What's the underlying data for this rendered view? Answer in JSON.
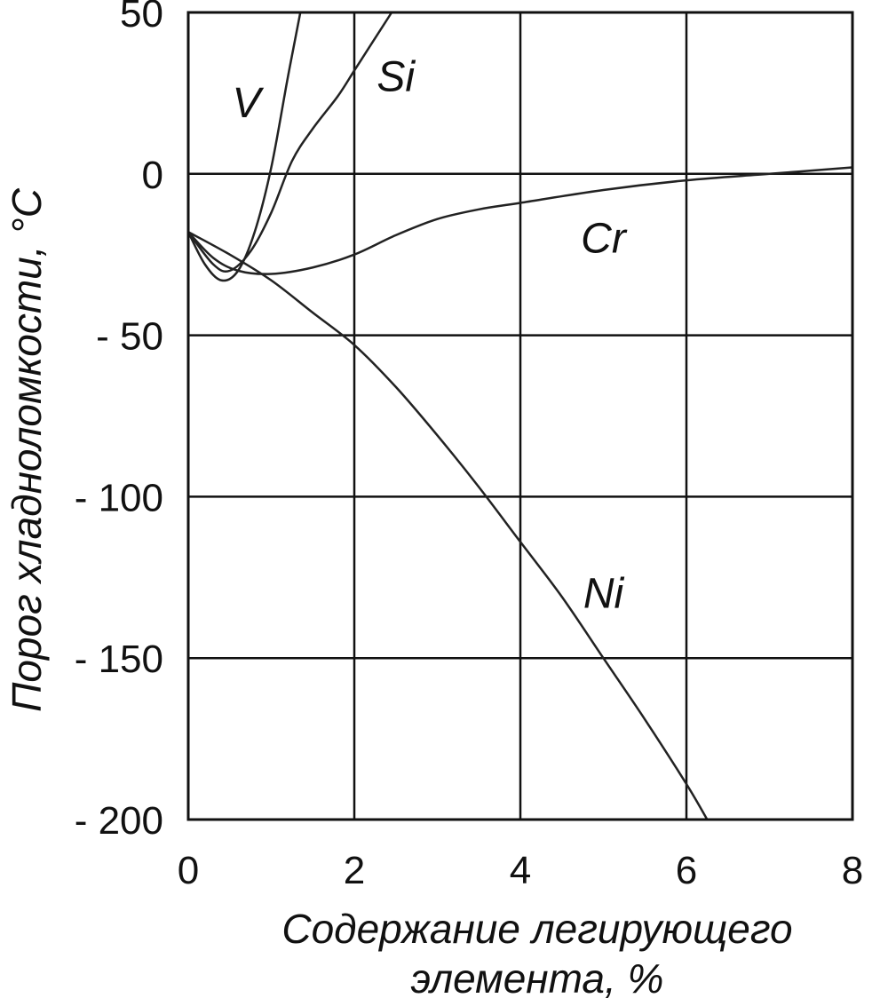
{
  "chart_data": {
    "type": "line",
    "title": "",
    "xlabel_line1": "Содержание легирующего",
    "xlabel_line2": "элемента, %",
    "ylabel": "Порог хладноломкости, °C",
    "xlim": [
      0,
      8
    ],
    "ylim": [
      -200,
      50
    ],
    "x_ticks": [
      0,
      2,
      4,
      6,
      8
    ],
    "x_tick_labels": [
      "0",
      "2",
      "4",
      "6",
      "8"
    ],
    "y_ticks": [
      50,
      0,
      -50,
      -100,
      -150,
      -200
    ],
    "y_tick_labels": [
      "50",
      "0",
      "- 50",
      "- 100",
      "- 150",
      "- 200"
    ],
    "grid": true,
    "series": [
      {
        "name": "V",
        "x": [
          0,
          0.2,
          0.4,
          0.6,
          0.8,
          1.0,
          1.2,
          1.35
        ],
        "y": [
          -18,
          -28,
          -33,
          -30,
          -18,
          2,
          30,
          50
        ]
      },
      {
        "name": "Si",
        "x": [
          0,
          0.3,
          0.5,
          0.75,
          1.0,
          1.25,
          1.5,
          1.8,
          2.0,
          2.2,
          2.45
        ],
        "y": [
          -18,
          -28,
          -30,
          -24,
          -12,
          4,
          14,
          24,
          32,
          40,
          50
        ]
      },
      {
        "name": "Cr",
        "x": [
          0,
          0.3,
          0.6,
          1.0,
          1.5,
          2.0,
          2.5,
          3.0,
          3.5,
          4.0,
          5.0,
          6.0,
          7.0,
          8.0
        ],
        "y": [
          -18,
          -26,
          -30,
          -31,
          -29,
          -25,
          -19,
          -14,
          -11,
          -9,
          -5,
          -2,
          0,
          2
        ]
      },
      {
        "name": "Ni",
        "x": [
          0,
          0.5,
          1.0,
          1.5,
          2.0,
          2.5,
          3.0,
          3.5,
          4.0,
          4.5,
          5.0,
          5.5,
          6.0,
          6.25
        ],
        "y": [
          -18,
          -25,
          -33,
          -43,
          -53,
          -66,
          -81,
          -97,
          -114,
          -131,
          -150,
          -169,
          -189,
          -200
        ]
      }
    ],
    "annotations": [
      {
        "text": "V",
        "x": 0.7,
        "y": 22
      },
      {
        "text": "Si",
        "x": 2.5,
        "y": 30
      },
      {
        "text": "Cr",
        "x": 5.0,
        "y": -20
      },
      {
        "text": "Ni",
        "x": 5.0,
        "y": -130
      }
    ]
  }
}
